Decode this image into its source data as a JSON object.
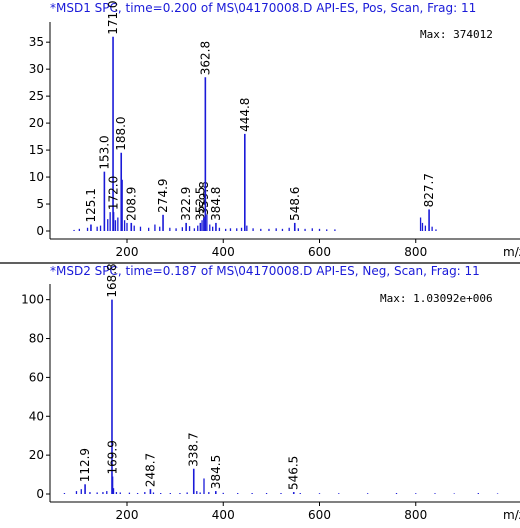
{
  "chart_data": [
    {
      "type": "bar",
      "title": "*MSD1 SPC, time=0.200 of MS\\04170008.D   API-ES, Pos, Scan, Frag: 11",
      "max_label": "Max: 374012",
      "xlabel": "m/z",
      "ylim": [
        0,
        38
      ],
      "xlim": [
        40,
        1000
      ],
      "yticks": [
        0,
        5,
        10,
        15,
        20,
        25,
        30,
        35
      ],
      "xticks": [
        200,
        400,
        600,
        800
      ],
      "color": "#1a1ad8",
      "grid": false,
      "labeled_peaks": [
        {
          "x": 125.1,
          "y": 1.2
        },
        {
          "x": 153.0,
          "y": 11.0
        },
        {
          "x": 171.0,
          "y": 36.0
        },
        {
          "x": 172.0,
          "y": 3.5
        },
        {
          "x": 188.0,
          "y": 14.5
        },
        {
          "x": 208.9,
          "y": 1.5
        },
        {
          "x": 274.9,
          "y": 3.0
        },
        {
          "x": 322.9,
          "y": 1.5
        },
        {
          "x": 352.5,
          "y": 1.5
        },
        {
          "x": 359.8,
          "y": 2.5
        },
        {
          "x": 362.8,
          "y": 28.5
        },
        {
          "x": 384.8,
          "y": 1.5
        },
        {
          "x": 444.8,
          "y": 18.0
        },
        {
          "x": 548.6,
          "y": 1.5
        },
        {
          "x": 827.7,
          "y": 4.0
        }
      ],
      "minor_peaks": [
        {
          "x": 90,
          "y": 0.2
        },
        {
          "x": 101,
          "y": 0.4
        },
        {
          "x": 118,
          "y": 0.6
        },
        {
          "x": 138,
          "y": 0.8
        },
        {
          "x": 145,
          "y": 1.0
        },
        {
          "x": 160,
          "y": 2.2
        },
        {
          "x": 165,
          "y": 3.5
        },
        {
          "x": 176,
          "y": 2.0
        },
        {
          "x": 181,
          "y": 2.5
        },
        {
          "x": 190,
          "y": 9.5
        },
        {
          "x": 195,
          "y": 2.0
        },
        {
          "x": 200,
          "y": 1.5
        },
        {
          "x": 215,
          "y": 1.0
        },
        {
          "x": 228,
          "y": 0.8
        },
        {
          "x": 245,
          "y": 0.6
        },
        {
          "x": 258,
          "y": 1.2
        },
        {
          "x": 268,
          "y": 0.8
        },
        {
          "x": 289,
          "y": 0.6
        },
        {
          "x": 302,
          "y": 0.5
        },
        {
          "x": 315,
          "y": 0.7
        },
        {
          "x": 330,
          "y": 0.9
        },
        {
          "x": 340,
          "y": 0.5
        },
        {
          "x": 347,
          "y": 1.0
        },
        {
          "x": 356,
          "y": 2.0
        },
        {
          "x": 366,
          "y": 3.0
        },
        {
          "x": 372,
          "y": 1.2
        },
        {
          "x": 378,
          "y": 0.8
        },
        {
          "x": 392,
          "y": 0.6
        },
        {
          "x": 405,
          "y": 0.4
        },
        {
          "x": 415,
          "y": 0.5
        },
        {
          "x": 428,
          "y": 0.5
        },
        {
          "x": 438,
          "y": 0.6
        },
        {
          "x": 449,
          "y": 1.0
        },
        {
          "x": 462,
          "y": 0.5
        },
        {
          "x": 478,
          "y": 0.4
        },
        {
          "x": 495,
          "y": 0.4
        },
        {
          "x": 510,
          "y": 0.5
        },
        {
          "x": 523,
          "y": 0.4
        },
        {
          "x": 537,
          "y": 0.6
        },
        {
          "x": 556,
          "y": 0.5
        },
        {
          "x": 570,
          "y": 0.4
        },
        {
          "x": 585,
          "y": 0.5
        },
        {
          "x": 600,
          "y": 0.4
        },
        {
          "x": 615,
          "y": 0.3
        },
        {
          "x": 632,
          "y": 0.3
        },
        {
          "x": 810,
          "y": 2.5
        },
        {
          "x": 814,
          "y": 1.5
        },
        {
          "x": 820,
          "y": 1.0
        },
        {
          "x": 834,
          "y": 0.8
        },
        {
          "x": 842,
          "y": 0.3
        }
      ]
    },
    {
      "type": "bar",
      "title": "*MSD2 SPC, time=0.187 of MS\\04170008.D   API-ES, Neg, Scan, Frag: 11",
      "max_label": "Max: 1.03092e+006",
      "xlabel": "m/z",
      "ylim": [
        0,
        106
      ],
      "xlim": [
        40,
        1000
      ],
      "yticks": [
        0,
        20,
        40,
        60,
        80,
        100
      ],
      "xticks": [
        200,
        400,
        600,
        800
      ],
      "color": "#1a1ad8",
      "grid": false,
      "labeled_peaks": [
        {
          "x": 112.9,
          "y": 5.0
        },
        {
          "x": 168.8,
          "y": 100.0
        },
        {
          "x": 169.9,
          "y": 9.0
        },
        {
          "x": 248.7,
          "y": 2.5
        },
        {
          "x": 338.7,
          "y": 13.0
        },
        {
          "x": 384.5,
          "y": 1.5
        },
        {
          "x": 546.5,
          "y": 1.0
        }
      ],
      "minor_peaks": [
        {
          "x": 70,
          "y": 0.5
        },
        {
          "x": 95,
          "y": 1.5
        },
        {
          "x": 105,
          "y": 2.5
        },
        {
          "x": 123,
          "y": 1.0
        },
        {
          "x": 138,
          "y": 0.8
        },
        {
          "x": 150,
          "y": 1.0
        },
        {
          "x": 158,
          "y": 1.5
        },
        {
          "x": 172,
          "y": 3.0
        },
        {
          "x": 178,
          "y": 1.0
        },
        {
          "x": 186,
          "y": 0.8
        },
        {
          "x": 205,
          "y": 0.7
        },
        {
          "x": 222,
          "y": 0.5
        },
        {
          "x": 237,
          "y": 1.0
        },
        {
          "x": 255,
          "y": 0.8
        },
        {
          "x": 270,
          "y": 0.5
        },
        {
          "x": 290,
          "y": 0.5
        },
        {
          "x": 310,
          "y": 0.5
        },
        {
          "x": 325,
          "y": 0.8
        },
        {
          "x": 345,
          "y": 1.5
        },
        {
          "x": 352,
          "y": 0.8
        },
        {
          "x": 360,
          "y": 8.0
        },
        {
          "x": 370,
          "y": 1.0
        },
        {
          "x": 400,
          "y": 0.6
        },
        {
          "x": 430,
          "y": 0.5
        },
        {
          "x": 460,
          "y": 0.5
        },
        {
          "x": 490,
          "y": 0.5
        },
        {
          "x": 520,
          "y": 0.5
        },
        {
          "x": 560,
          "y": 0.5
        },
        {
          "x": 600,
          "y": 0.4
        },
        {
          "x": 640,
          "y": 0.4
        },
        {
          "x": 700,
          "y": 0.4
        },
        {
          "x": 760,
          "y": 0.5
        },
        {
          "x": 800,
          "y": 0.4
        },
        {
          "x": 840,
          "y": 0.4
        },
        {
          "x": 880,
          "y": 0.3
        },
        {
          "x": 930,
          "y": 0.5
        },
        {
          "x": 970,
          "y": 0.3
        }
      ]
    }
  ]
}
